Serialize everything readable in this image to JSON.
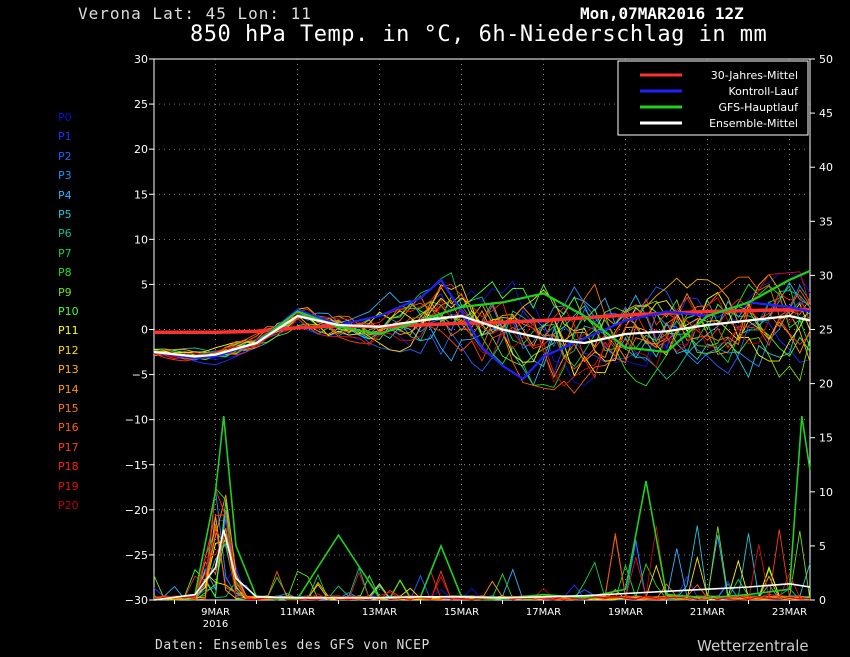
{
  "header": {
    "location": "Verona   Lat: 45 Lon: 11",
    "date": "Mon,07MAR2016 12Z",
    "title": "850 hPa Temp. in °C, 6h-Niederschlag in mm"
  },
  "footer": {
    "credit": "Daten: Ensembles des GFS von NCEP",
    "brand": "Wetterzentrale"
  },
  "members": [
    {
      "label": "P0",
      "color": "#1010d8"
    },
    {
      "label": "P1",
      "color": "#2030ff"
    },
    {
      "label": "P2",
      "color": "#2060ff"
    },
    {
      "label": "P3",
      "color": "#2090ff"
    },
    {
      "label": "P4",
      "color": "#30b0ff"
    },
    {
      "label": "P5",
      "color": "#20c8d8"
    },
    {
      "label": "P6",
      "color": "#10c090"
    },
    {
      "label": "P7",
      "color": "#10d050"
    },
    {
      "label": "P8",
      "color": "#20e020"
    },
    {
      "label": "P9",
      "color": "#70e010"
    },
    {
      "label": "P10",
      "color": "#40ff40"
    },
    {
      "label": "P11",
      "color": "#ffff00"
    },
    {
      "label": "P12",
      "color": "#ffd800"
    },
    {
      "label": "P13",
      "color": "#ffb400"
    },
    {
      "label": "P14",
      "color": "#ff9800"
    },
    {
      "label": "P15",
      "color": "#ff7a00"
    },
    {
      "label": "P16",
      "color": "#ff6000"
    },
    {
      "label": "P17",
      "color": "#ff4010"
    },
    {
      "label": "P18",
      "color": "#ff2010"
    },
    {
      "label": "P19",
      "color": "#e01010"
    },
    {
      "label": "P20",
      "color": "#c00010"
    }
  ],
  "chart_data": {
    "type": "line",
    "title": "850 hPa Temp. in °C, 6h-Niederschlag in mm",
    "x_tick_labels": [
      "9MAR",
      "11MAR",
      "13MAR",
      "15MAR",
      "17MAR",
      "19MAR",
      "21MAR",
      "23MAR"
    ],
    "x_year_label": "2016",
    "x_range_days": [
      7.5,
      23.5
    ],
    "y_left": {
      "label": "°C",
      "min": -30,
      "max": 30,
      "step": 5
    },
    "y_right": {
      "label": "mm",
      "min": 0,
      "max": 50,
      "step": 5
    },
    "grid": true,
    "legend_position": "top-right",
    "legend": [
      {
        "name": "30-Jahres-Mittel",
        "color": "#ff3030"
      },
      {
        "name": "Kontroll-Lauf",
        "color": "#2020ff"
      },
      {
        "name": "GFS-Hauptlauf",
        "color": "#20d020"
      },
      {
        "name": "Ensemble-Mittel",
        "color": "#ffffff"
      }
    ],
    "temp_series": [
      {
        "name": "30-Jahres-Mittel",
        "x": [
          7.5,
          9,
          10,
          11,
          12,
          13,
          14,
          15,
          16,
          17,
          18,
          19,
          20,
          21,
          22,
          23,
          23.5
        ],
        "y": [
          -0.3,
          -0.3,
          -0.2,
          0.2,
          0.4,
          0.3,
          0.5,
          0.7,
          0.8,
          1.0,
          1.3,
          1.6,
          1.8,
          2.0,
          2.1,
          2.2,
          2.2
        ]
      },
      {
        "name": "Kontroll-Lauf",
        "x": [
          7.5,
          8.5,
          9,
          10,
          11,
          12,
          13,
          14,
          14.5,
          15,
          15.5,
          16,
          16.5,
          17,
          18,
          19,
          20,
          21,
          22,
          23,
          23.5
        ],
        "y": [
          -2.5,
          -3.2,
          -3.0,
          -1.5,
          2.2,
          0.5,
          1.5,
          3.5,
          5.5,
          2.0,
          -2.0,
          -4.0,
          -5.5,
          -3.0,
          -1.0,
          1.0,
          2.0,
          1.5,
          3.0,
          2.5,
          2.0
        ]
      },
      {
        "name": "GFS-Hauptlauf",
        "x": [
          7.5,
          8.5,
          9,
          10,
          11,
          12,
          13,
          14,
          15,
          16,
          17,
          18,
          19,
          20,
          21,
          22,
          23,
          23.5
        ],
        "y": [
          -2.5,
          -3.0,
          -2.8,
          -1.5,
          2.0,
          0.3,
          -0.5,
          1.0,
          2.5,
          3.0,
          4.0,
          1.5,
          -2.0,
          -2.5,
          1.5,
          3.0,
          5.5,
          6.5
        ]
      },
      {
        "name": "Ensemble-Mittel",
        "x": [
          7.5,
          8.5,
          9,
          10,
          11,
          12,
          13,
          14,
          15,
          16,
          17,
          18,
          19,
          20,
          21,
          22,
          23,
          23.5
        ],
        "y": [
          -2.5,
          -3.0,
          -2.8,
          -1.5,
          1.5,
          0.5,
          0.3,
          1.0,
          1.5,
          0.0,
          -1.0,
          -1.5,
          -0.5,
          -0.2,
          0.5,
          1.0,
          1.5,
          1.0
        ]
      }
    ],
    "ensemble_temp_envelope": {
      "x": [
        7.5,
        9,
        11,
        13,
        15,
        17,
        19,
        21,
        23.5
      ],
      "low": [
        -3.5,
        -4.0,
        0.0,
        -2.0,
        -4.0,
        -6.5,
        -8.0,
        -7.0,
        -8.0
      ],
      "high": [
        -2.0,
        -2.0,
        2.8,
        3.5,
        8.5,
        8.0,
        6.0,
        5.5,
        6.5
      ]
    },
    "precip_series": [
      {
        "name": "GFS-Hauptlauf",
        "x": [
          7.5,
          8.5,
          9,
          9.2,
          9.5,
          10,
          11,
          12,
          13,
          14,
          14.5,
          15,
          16,
          17,
          18,
          19,
          19.5,
          20,
          21,
          22,
          23,
          23.3,
          23.5
        ],
        "y": [
          0,
          0.5,
          10,
          17,
          5,
          0.3,
          0.1,
          6,
          0.2,
          0.3,
          5,
          0.3,
          0.1,
          0.5,
          0.2,
          1,
          11,
          0.5,
          0.2,
          0.5,
          1,
          17,
          12
        ]
      },
      {
        "name": "Ensemble-Mittel",
        "x": [
          7.5,
          8.5,
          9,
          9.2,
          9.5,
          10,
          11,
          12,
          13,
          14,
          15,
          16,
          17,
          18,
          19,
          20,
          21,
          22,
          23,
          23.5
        ],
        "y": [
          0,
          0.5,
          3,
          6.5,
          2,
          0.3,
          0.2,
          0.2,
          0.2,
          0.3,
          0.3,
          0.2,
          0.3,
          0.4,
          0.6,
          0.8,
          1.0,
          1.2,
          1.5,
          1.2
        ]
      }
    ]
  }
}
